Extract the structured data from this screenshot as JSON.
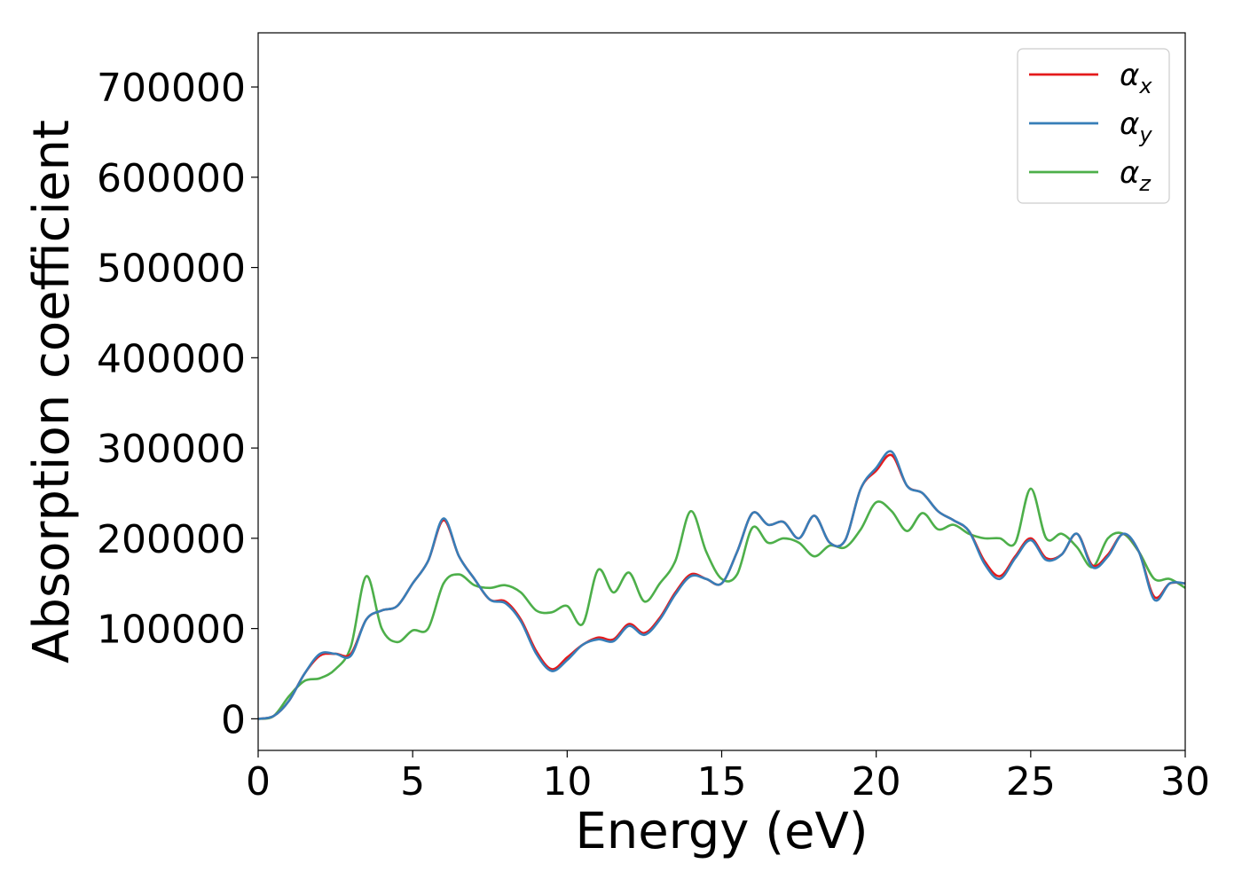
{
  "chart_data": {
    "type": "line",
    "title": "",
    "xlabel": "Energy (eV)",
    "ylabel": "Absorption coefficient",
    "xlim": [
      0,
      30
    ],
    "ylim": [
      -35000,
      760000
    ],
    "xticks": [
      0,
      5,
      10,
      15,
      20,
      25,
      30
    ],
    "yticks": [
      0,
      100000,
      200000,
      300000,
      400000,
      500000,
      600000,
      700000
    ],
    "xtick_labels": [
      "0",
      "5",
      "10",
      "15",
      "20",
      "25",
      "30"
    ],
    "ytick_labels": [
      "0",
      "100000",
      "200000",
      "300000",
      "400000",
      "500000",
      "600000",
      "700000"
    ],
    "grid": false,
    "legend_position": "top-right",
    "x": [
      0,
      0.5,
      1,
      1.5,
      2,
      2.5,
      3,
      3.5,
      4,
      4.5,
      5,
      5.5,
      6,
      6.5,
      7,
      7.5,
      8,
      8.5,
      9,
      9.5,
      10,
      10.5,
      11,
      11.5,
      12,
      12.5,
      13,
      13.5,
      14,
      14.5,
      15,
      15.5,
      16,
      16.5,
      17,
      17.5,
      18,
      18.5,
      19,
      19.5,
      20,
      20.5,
      21,
      21.5,
      22,
      22.5,
      23,
      23.5,
      24,
      24.5,
      25,
      25.5,
      26,
      26.5,
      27,
      27.5,
      28,
      28.5,
      29,
      29.5,
      30
    ],
    "series": [
      {
        "name": "α",
        "subscript": "x",
        "color": "#e41a1c",
        "values": [
          0,
          3000,
          20000,
          50000,
          70000,
          72000,
          72000,
          110000,
          120000,
          125000,
          150000,
          175000,
          220000,
          180000,
          155000,
          132000,
          130000,
          110000,
          75000,
          55000,
          68000,
          82000,
          90000,
          88000,
          105000,
          95000,
          112000,
          140000,
          160000,
          155000,
          150000,
          185000,
          228000,
          215000,
          218000,
          200000,
          225000,
          195000,
          198000,
          255000,
          275000,
          292000,
          258000,
          250000,
          230000,
          220000,
          208000,
          175000,
          158000,
          180000,
          200000,
          178000,
          182000,
          205000,
          170000,
          182000,
          205000,
          185000,
          135000,
          150000,
          150000
        ]
      },
      {
        "name": "α",
        "subscript": "y",
        "color": "#377eb8",
        "values": [
          0,
          3000,
          20000,
          50000,
          72000,
          72000,
          70000,
          110000,
          120000,
          125000,
          150000,
          175000,
          222000,
          180000,
          155000,
          132000,
          128000,
          108000,
          72000,
          53000,
          65000,
          82000,
          88000,
          86000,
          103000,
          93000,
          110000,
          138000,
          158000,
          155000,
          150000,
          185000,
          228000,
          215000,
          218000,
          200000,
          225000,
          195000,
          198000,
          255000,
          278000,
          296000,
          258000,
          250000,
          230000,
          220000,
          208000,
          172000,
          155000,
          178000,
          198000,
          176000,
          182000,
          205000,
          168000,
          180000,
          205000,
          185000,
          132000,
          150000,
          150000
        ]
      },
      {
        "name": "α",
        "subscript": "z",
        "color": "#4daf4a",
        "values": [
          0,
          3000,
          25000,
          42000,
          45000,
          55000,
          80000,
          158000,
          100000,
          85000,
          98000,
          100000,
          150000,
          160000,
          148000,
          145000,
          148000,
          140000,
          120000,
          118000,
          125000,
          105000,
          165000,
          140000,
          162000,
          130000,
          150000,
          175000,
          230000,
          185000,
          155000,
          160000,
          212000,
          195000,
          200000,
          195000,
          180000,
          192000,
          190000,
          210000,
          240000,
          230000,
          208000,
          228000,
          210000,
          215000,
          205000,
          200000,
          200000,
          195000,
          255000,
          200000,
          205000,
          190000,
          168000,
          200000,
          205000,
          185000,
          155000,
          155000,
          145000
        ]
      }
    ]
  }
}
